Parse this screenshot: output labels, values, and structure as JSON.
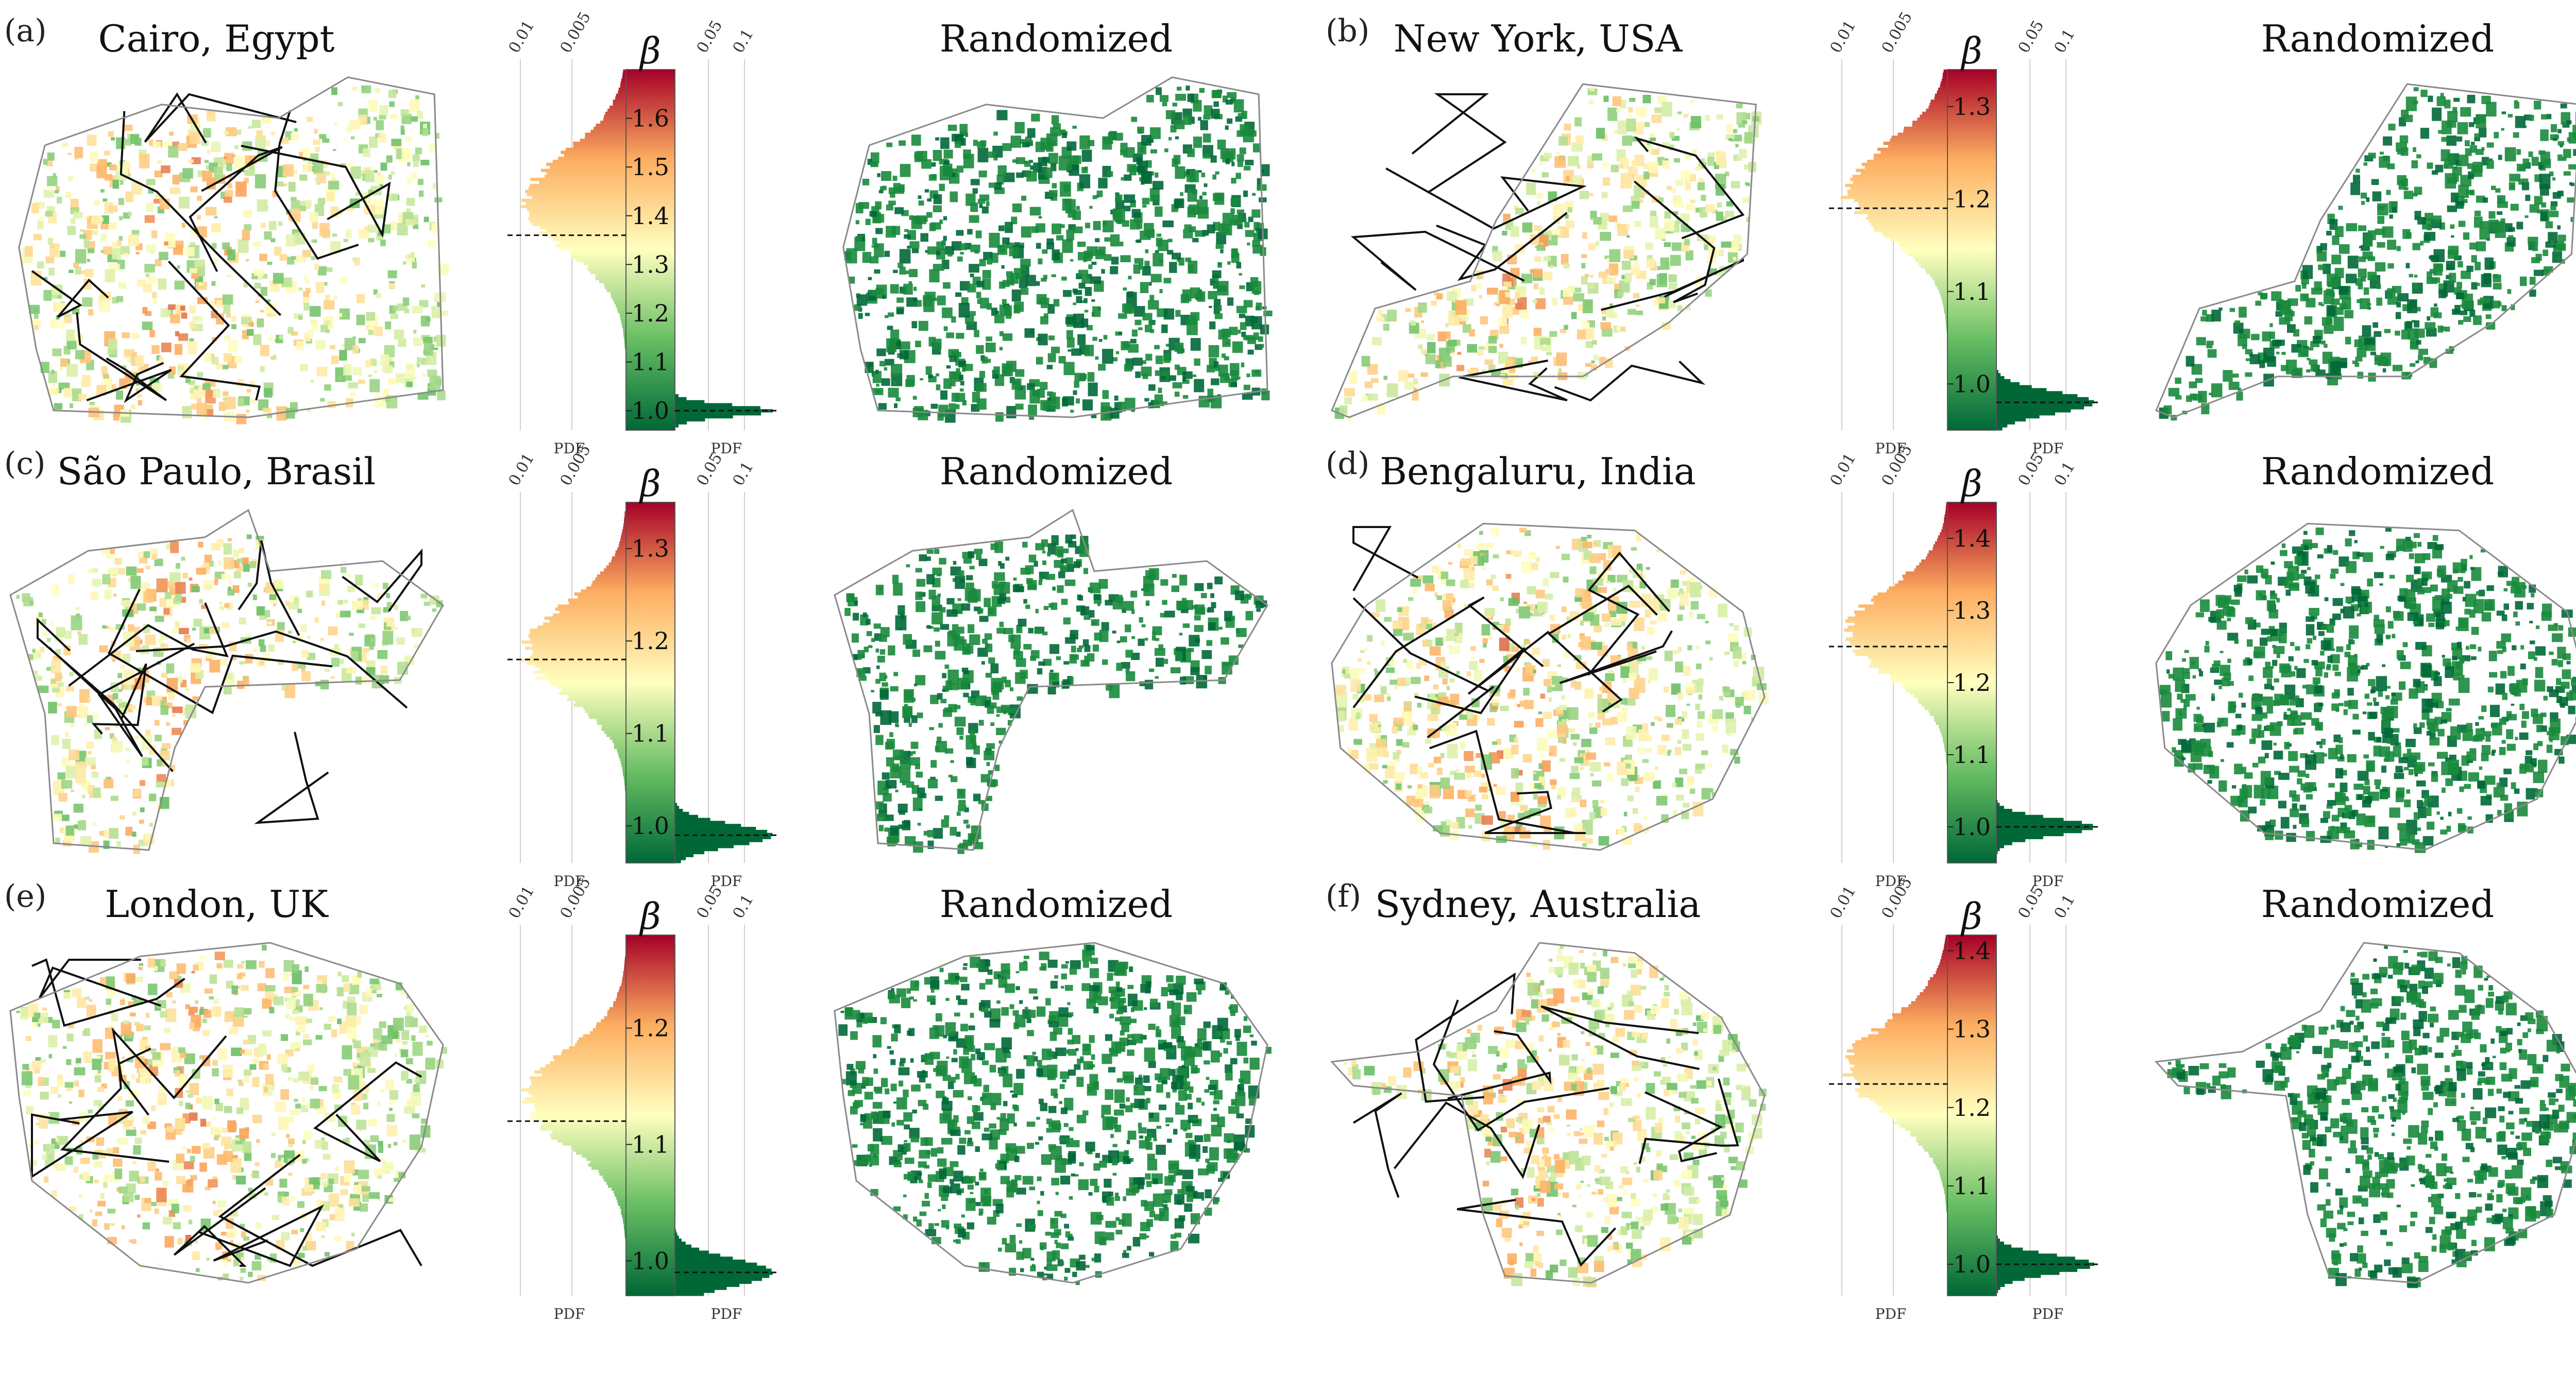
{
  "figure": {
    "colors": {
      "low": "#006837",
      "mid_low": "#66bd63",
      "mid": "#ffffbf",
      "mid_high": "#fdae61",
      "high": "#a50026",
      "randomized": "#1a8a3c",
      "road": "#111111"
    }
  },
  "chart_data": [
    {
      "type": "map+histogram",
      "panel": "(a)",
      "title": "Cairo, Egypt",
      "randomized_title": "Randomized",
      "colorbar_label": "β",
      "beta_range": [
        0.96,
        1.7
      ],
      "beta_ticks": [
        "1.0",
        "1.1",
        "1.2",
        "1.3",
        "1.4",
        "1.5",
        "1.6"
      ],
      "beta_tick_values": [
        1.0,
        1.1,
        1.2,
        1.3,
        1.4,
        1.5,
        1.6
      ],
      "pdf_ticks_left": [
        "0.01",
        "0.005"
      ],
      "pdf_ticks_right": [
        "0.05",
        "0.1"
      ],
      "pdf_label": "PDF",
      "observed_median_beta": 1.36,
      "randomized_median_beta": 1.0,
      "observed_hist": {
        "center": 1.43,
        "spread": 0.1
      }
    },
    {
      "type": "map+histogram",
      "panel": "(b)",
      "title": "New York, USA",
      "randomized_title": "Randomized",
      "colorbar_label": "β",
      "beta_range": [
        0.95,
        1.34
      ],
      "beta_ticks": [
        "1.0",
        "1.1",
        "1.2",
        "1.3"
      ],
      "beta_tick_values": [
        1.0,
        1.1,
        1.2,
        1.3
      ],
      "pdf_ticks_left": [
        "0.01",
        "0.005"
      ],
      "pdf_ticks_right": [
        "0.05",
        "0.1"
      ],
      "pdf_label": "PDF",
      "observed_median_beta": 1.19,
      "randomized_median_beta": 0.98,
      "observed_hist": {
        "center": 1.21,
        "spread": 0.05
      }
    },
    {
      "type": "map+histogram",
      "panel": "(c)",
      "title": "São Paulo, Brasil",
      "randomized_title": "Randomized",
      "colorbar_label": "β",
      "beta_range": [
        0.96,
        1.35
      ],
      "beta_ticks": [
        "1.0",
        "1.1",
        "1.2",
        "1.3"
      ],
      "beta_tick_values": [
        1.0,
        1.1,
        1.2,
        1.3
      ],
      "pdf_ticks_left": [
        "0.01",
        "0.005"
      ],
      "pdf_ticks_right": [
        "0.05",
        "0.1"
      ],
      "pdf_label": "PDF",
      "observed_median_beta": 1.18,
      "randomized_median_beta": 0.99,
      "observed_hist": {
        "center": 1.19,
        "spread": 0.05
      }
    },
    {
      "type": "map+histogram",
      "panel": "(d)",
      "title": "Bengaluru, India",
      "randomized_title": "Randomized",
      "colorbar_label": "β",
      "beta_range": [
        0.95,
        1.45
      ],
      "beta_ticks": [
        "1.0",
        "1.1",
        "1.2",
        "1.3",
        "1.4"
      ],
      "beta_tick_values": [
        1.0,
        1.1,
        1.2,
        1.3,
        1.4
      ],
      "pdf_ticks_left": [
        "0.01",
        "0.005"
      ],
      "pdf_ticks_right": [
        "0.05",
        "0.1"
      ],
      "pdf_label": "PDF",
      "observed_median_beta": 1.25,
      "randomized_median_beta": 1.0,
      "observed_hist": {
        "center": 1.27,
        "spread": 0.06
      }
    },
    {
      "type": "map+histogram",
      "panel": "(e)",
      "title": "London, UK",
      "randomized_title": "Randomized",
      "colorbar_label": "β",
      "beta_range": [
        0.97,
        1.28
      ],
      "beta_ticks": [
        "1.0",
        "1.1",
        "1.2"
      ],
      "beta_tick_values": [
        1.0,
        1.1,
        1.2
      ],
      "pdf_ticks_left": [
        "0.01",
        "0.005"
      ],
      "pdf_ticks_right": [
        "0.05",
        "0.1"
      ],
      "pdf_label": "PDF",
      "observed_median_beta": 1.12,
      "randomized_median_beta": 0.99,
      "observed_hist": {
        "center": 1.14,
        "spread": 0.04
      }
    },
    {
      "type": "map+histogram",
      "panel": "(f)",
      "title": "Sydney, Australia",
      "randomized_title": "Randomized",
      "colorbar_label": "β",
      "beta_range": [
        0.96,
        1.42
      ],
      "beta_ticks": [
        "1.0",
        "1.1",
        "1.2",
        "1.3",
        "1.4"
      ],
      "beta_tick_values": [
        1.0,
        1.1,
        1.2,
        1.3,
        1.4
      ],
      "pdf_ticks_left": [
        "0.01",
        "0.005"
      ],
      "pdf_ticks_right": [
        "0.05",
        "0.1"
      ],
      "pdf_label": "PDF",
      "observed_median_beta": 1.23,
      "randomized_median_beta": 1.0,
      "observed_hist": {
        "center": 1.25,
        "spread": 0.06
      }
    }
  ]
}
